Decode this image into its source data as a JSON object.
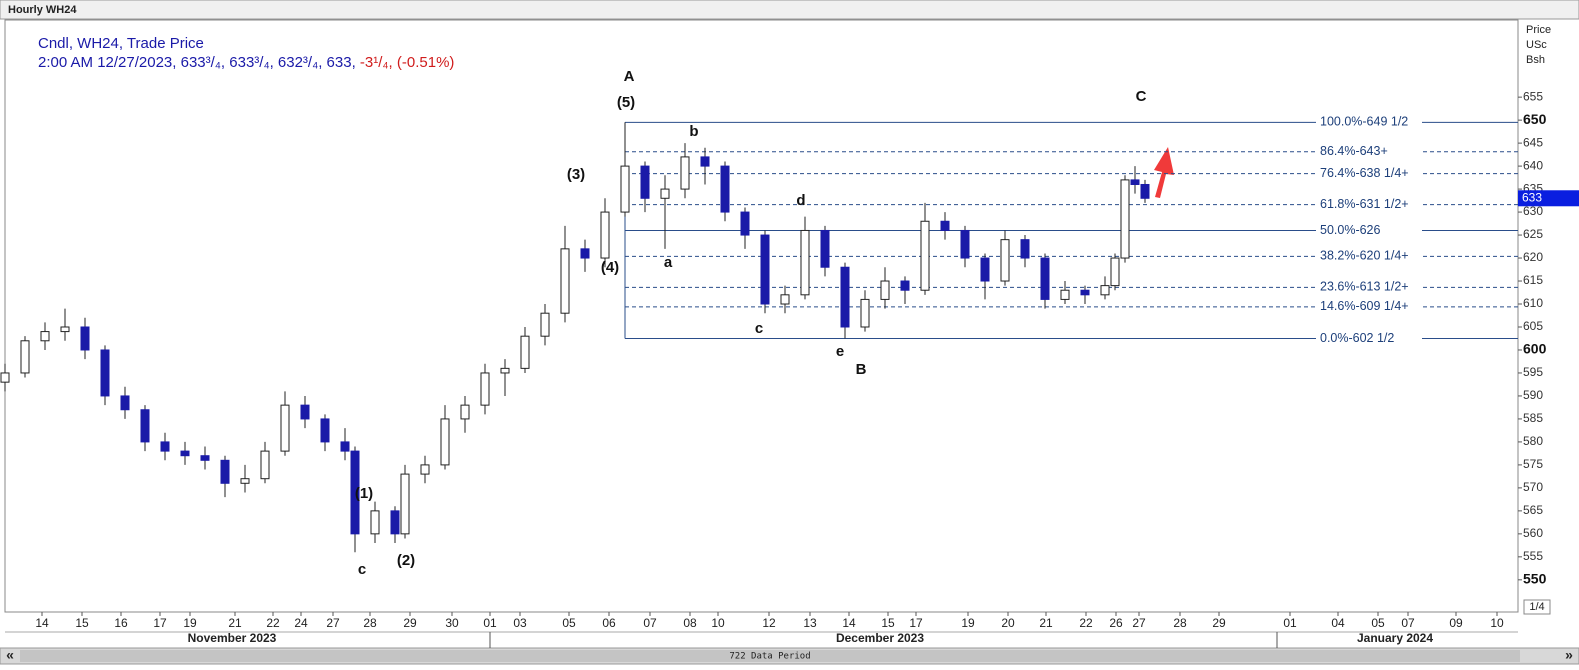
{
  "header": {
    "title": "Hourly WH24"
  },
  "legend": {
    "line1": "Cndl, WH24, Trade Price",
    "line2": "2:00 AM 12/27/2023, 633³/₄, 633³/₄, 632³/₄, 633,",
    "change": "-3¹/₄, (-0.51%)"
  },
  "price_axis_header": [
    "Price",
    "USc",
    "Bsh"
  ],
  "footer": {
    "data_period": "722 Data Period",
    "scale": "1/4",
    "left_arrow": "«",
    "right_arrow": "»"
  },
  "chart_data": {
    "type": "candlestick",
    "up_color": "#ffffff",
    "down_color": "#1a1aa8",
    "wick_color": "#222222",
    "xlim": [
      0,
      151.3
    ],
    "ylim": [
      543,
      672
    ],
    "yticks": [
      550,
      555,
      560,
      565,
      570,
      575,
      580,
      585,
      590,
      595,
      600,
      605,
      610,
      615,
      620,
      625,
      630,
      635,
      640,
      645,
      650,
      655
    ],
    "major_yticks": [
      550,
      600,
      650
    ],
    "xticks": [
      {
        "value": 3.7,
        "label": "14"
      },
      {
        "value": 7.7,
        "label": "15"
      },
      {
        "value": 11.6,
        "label": "16"
      },
      {
        "value": 15.5,
        "label": "17"
      },
      {
        "value": 18.5,
        "label": "19"
      },
      {
        "value": 23,
        "label": "21"
      },
      {
        "value": 26.8,
        "label": "22"
      },
      {
        "value": 29.6,
        "label": "24"
      },
      {
        "value": 32.8,
        "label": "27"
      },
      {
        "value": 36.5,
        "label": "28"
      },
      {
        "value": 40.5,
        "label": "29"
      },
      {
        "value": 44.7,
        "label": "30"
      },
      {
        "value": 48.5,
        "label": "01"
      },
      {
        "value": 51.5,
        "label": "03"
      },
      {
        "value": 56.4,
        "label": "05"
      },
      {
        "value": 60.4,
        "label": "06"
      },
      {
        "value": 64.5,
        "label": "07"
      },
      {
        "value": 68.5,
        "label": "08"
      },
      {
        "value": 71.3,
        "label": "10"
      },
      {
        "value": 76.4,
        "label": "12"
      },
      {
        "value": 80.5,
        "label": "13"
      },
      {
        "value": 84.4,
        "label": "14"
      },
      {
        "value": 88.3,
        "label": "15"
      },
      {
        "value": 91.1,
        "label": "17"
      },
      {
        "value": 96.3,
        "label": "19"
      },
      {
        "value": 100.3,
        "label": "20"
      },
      {
        "value": 104.1,
        "label": "21"
      },
      {
        "value": 108.1,
        "label": "22"
      },
      {
        "value": 111.1,
        "label": "26"
      },
      {
        "value": 113.4,
        "label": "27"
      },
      {
        "value": 117.5,
        "label": "28"
      },
      {
        "value": 121.4,
        "label": "29"
      },
      {
        "value": 128.5,
        "label": "01"
      },
      {
        "value": 133.3,
        "label": "04"
      },
      {
        "value": 137.3,
        "label": "05"
      },
      {
        "value": 140.3,
        "label": "07"
      },
      {
        "value": 145.1,
        "label": "09"
      },
      {
        "value": 149.2,
        "label": "10"
      }
    ],
    "months": [
      {
        "value": 22.7,
        "label": "November 2023"
      },
      {
        "value": 87.5,
        "label": "December 2023"
      },
      {
        "value": 139,
        "label": "January 2024"
      }
    ],
    "month_breaks": [
      48.5,
      127.2
    ],
    "x": [
      0,
      2,
      4,
      6,
      8,
      10,
      12,
      14,
      16,
      18,
      20,
      22,
      24,
      26,
      28,
      30,
      32,
      34,
      35,
      37,
      39,
      40,
      42,
      44,
      46,
      48,
      50,
      52,
      54,
      56,
      58,
      60,
      62,
      64,
      66,
      68,
      70,
      72,
      74,
      76,
      78,
      80,
      82,
      84,
      86,
      88,
      90,
      92,
      94,
      96,
      98,
      100,
      102,
      104,
      106,
      108,
      110,
      111,
      112,
      113,
      114
    ],
    "open": [
      593,
      595,
      602,
      604,
      605,
      600,
      590,
      587,
      580,
      578,
      577,
      576,
      571,
      572,
      578,
      588,
      585,
      580,
      578,
      560,
      565,
      560,
      573,
      575,
      585,
      588,
      595,
      596,
      603,
      608,
      622,
      620,
      630,
      640,
      633,
      635,
      642,
      640,
      630,
      625,
      610,
      612,
      626,
      618,
      605,
      611,
      615,
      613,
      628,
      626,
      620,
      615,
      624,
      620,
      611,
      613,
      612,
      614,
      620,
      637,
      636
    ],
    "high": [
      597,
      603,
      606,
      609,
      607,
      601,
      592,
      588,
      582,
      580,
      579,
      577,
      575,
      580,
      591,
      590,
      586,
      583,
      579,
      567,
      566,
      575,
      577,
      588,
      590,
      597,
      598,
      605,
      610,
      627,
      624,
      633,
      649.5,
      641,
      638,
      645,
      644,
      641,
      631,
      626,
      614,
      629,
      627,
      619,
      613,
      618,
      616,
      632,
      630,
      627,
      621,
      626,
      625,
      621,
      615,
      614,
      616,
      621,
      638,
      640,
      637
    ],
    "low": [
      591,
      594,
      600,
      602,
      598,
      588,
      585,
      578,
      576,
      575,
      574,
      568,
      569,
      571,
      577,
      583,
      578,
      576,
      556,
      558,
      558,
      559,
      571,
      574,
      582,
      586,
      590,
      595,
      601,
      606,
      617,
      618,
      629,
      630,
      622,
      633,
      636,
      628,
      622,
      608,
      608,
      611,
      616,
      602.5,
      604,
      609,
      610,
      612,
      624,
      618,
      611,
      614,
      618,
      609,
      610,
      610,
      611,
      613,
      619,
      634,
      632
    ],
    "close": [
      595,
      602,
      604,
      605,
      600,
      590,
      587,
      580,
      578,
      577,
      576,
      571,
      572,
      578,
      588,
      585,
      580,
      578,
      560,
      565,
      560,
      573,
      575,
      585,
      588,
      595,
      596,
      603,
      608,
      622,
      620,
      630,
      640,
      633,
      635,
      642,
      640,
      630,
      625,
      610,
      612,
      626,
      618,
      605,
      611,
      615,
      613,
      628,
      626,
      620,
      615,
      624,
      620,
      611,
      613,
      612,
      614,
      620,
      637,
      636,
      633
    ],
    "current_price": {
      "value": 633,
      "label": "633"
    },
    "fib_start": 62,
    "fib_levels": [
      {
        "value": 649.5,
        "label": "100.0%-649 1/2",
        "dashed": false
      },
      {
        "value": 643.125,
        "label": "86.4%-643+",
        "dashed": true
      },
      {
        "value": 638.375,
        "label": "76.4%-638 1/4+",
        "dashed": true
      },
      {
        "value": 631.625,
        "label": "61.8%-631 1/2+",
        "dashed": true
      },
      {
        "value": 626,
        "label": "50.0%-626",
        "dashed": false
      },
      {
        "value": 620.375,
        "label": "38.2%-620 1/4+",
        "dashed": true
      },
      {
        "value": 613.625,
        "label": "23.6%-613 1/2+",
        "dashed": true
      },
      {
        "value": 609.375,
        "label": "14.6%-609 1/4+",
        "dashed": true
      },
      {
        "value": 602.5,
        "label": "0.0%-602 1/2",
        "dashed": false
      }
    ],
    "annotations": [
      "A",
      "(5)",
      "b",
      "(3)",
      "d",
      "(4)",
      "a",
      "c",
      "e",
      "B",
      "C",
      "(1)",
      "c",
      "(2)"
    ]
  }
}
